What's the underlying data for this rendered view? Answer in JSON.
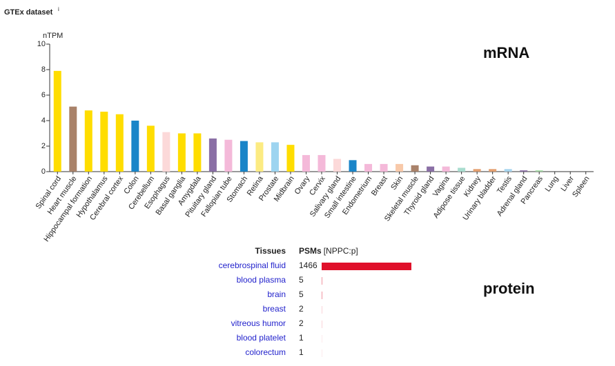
{
  "header": {
    "title": "GTEx dataset",
    "info": "i"
  },
  "chart_data": {
    "type": "bar",
    "label": "mRNA",
    "y_label": "nTPM",
    "categories": [
      "Spinal cord",
      "Heart muscle",
      "Hippocampal formation",
      "Hypothalamus",
      "Cerebral cortex",
      "Colon",
      "Cerebellum",
      "Esophagus",
      "Basal ganglia",
      "Amygdala",
      "Pituitary gland",
      "Fallopian tube",
      "Stomach",
      "Retina",
      "Prostate",
      "Midbrain",
      "Ovary",
      "Cervix",
      "Salivary gland",
      "Small intestine",
      "Endometrium",
      "Breast",
      "Skin",
      "Skeletal muscle",
      "Thyroid gland",
      "Vagina",
      "Adipose tissue",
      "Kidney",
      "Urinary bladder",
      "Testis",
      "Adrenal gland",
      "Pancreas",
      "Lung",
      "Liver",
      "Spleen"
    ],
    "values": [
      7.9,
      5.1,
      4.8,
      4.7,
      4.5,
      4.0,
      3.6,
      3.1,
      3.0,
      3.0,
      2.6,
      2.5,
      2.4,
      2.3,
      2.3,
      2.1,
      1.3,
      1.3,
      1.0,
      0.9,
      0.6,
      0.6,
      0.6,
      0.5,
      0.4,
      0.4,
      0.3,
      0.2,
      0.2,
      0.2,
      0.1,
      0.1,
      0,
      0,
      0
    ],
    "colors": [
      "#ffdd00",
      "#a9826a",
      "#ffdd00",
      "#ffdd00",
      "#ffdd00",
      "#1a85c8",
      "#ffdd00",
      "#fcd9d9",
      "#ffdd00",
      "#ffdd00",
      "#8a6fa5",
      "#f4b9d9",
      "#1a85c8",
      "#fceb82",
      "#9dd4f0",
      "#ffdd00",
      "#f4b9d9",
      "#f4b9d9",
      "#fcd9d9",
      "#1a85c8",
      "#f4b9d9",
      "#f4b9d9",
      "#f8c9a9",
      "#a9826a",
      "#8a6fa5",
      "#f4b9d9",
      "#a8dccf",
      "#e39f70",
      "#e39f70",
      "#a6d4ee",
      "#8a6fa5",
      "#a1d6a1",
      "#cccccc",
      "#cccccc",
      "#cccccc"
    ],
    "ylim": [
      0,
      10
    ],
    "yticks": [
      0,
      2,
      4,
      6,
      8,
      10
    ]
  },
  "protein": {
    "label": "protein",
    "headers": [
      "Tissues",
      "PSMs",
      "[NPPC:p]"
    ],
    "bar_color": "#e0102a",
    "rows": [
      [
        "cerebrospinal fluid",
        1466
      ],
      [
        "blood plasma",
        5
      ],
      [
        "brain",
        5
      ],
      [
        "breast",
        2
      ],
      [
        "vitreous humor",
        2
      ],
      [
        "blood platelet",
        1
      ],
      [
        "colorectum",
        1
      ]
    ]
  }
}
